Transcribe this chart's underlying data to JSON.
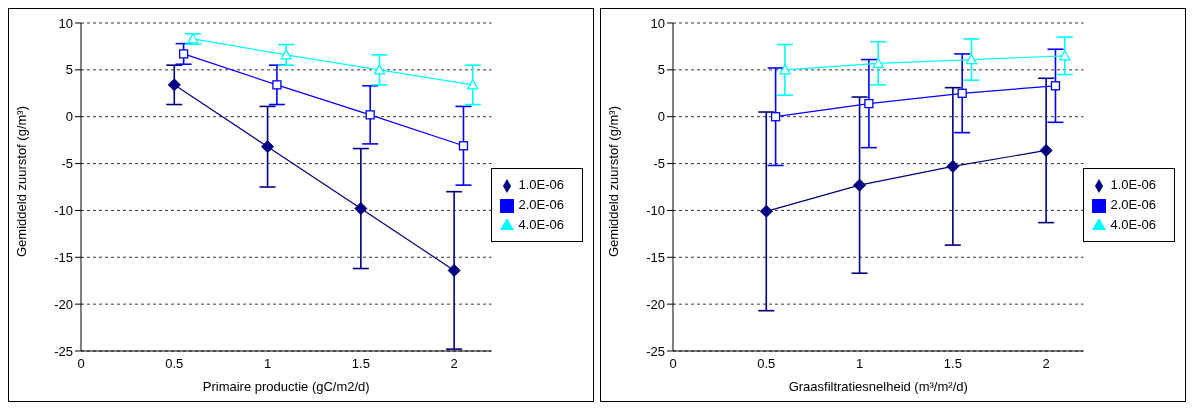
{
  "chart_data": [
    {
      "type": "line",
      "xlabel": "Primaire productie (gC/m2/d)",
      "ylabel": "Gemiddeld zuurstof (g/m³)",
      "xlim": [
        0,
        2.2
      ],
      "xticks": [
        0,
        0.5,
        1,
        1.5,
        2
      ],
      "ylim": [
        -25,
        10
      ],
      "yticks": [
        -25,
        -20,
        -15,
        -10,
        -5,
        0,
        5,
        10
      ],
      "grid": "y",
      "legend": "right",
      "series": [
        {
          "name": "1.0E-06",
          "color": "#000080",
          "marker": "diamond",
          "x": [
            0.5,
            1,
            1.5,
            2
          ],
          "values": [
            3.4,
            -3.2,
            -9.8,
            -16.4
          ],
          "errors": [
            2.1,
            4.3,
            6.4,
            8.4
          ]
        },
        {
          "name": "2.0E-06",
          "color": "#0000ff",
          "marker": "square",
          "x": [
            0.55,
            1.05,
            1.55,
            2.05
          ],
          "values": [
            6.7,
            3.4,
            0.2,
            -3.1
          ],
          "errors": [
            1.1,
            2.1,
            3.1,
            4.2
          ]
        },
        {
          "name": "4.0E-06",
          "color": "#00ffff",
          "marker": "triangle",
          "x": [
            0.6,
            1.1,
            1.6,
            2.1
          ],
          "values": [
            8.3,
            6.6,
            5.0,
            3.4
          ],
          "errors": [
            0.55,
            1.1,
            1.6,
            2.1
          ]
        }
      ]
    },
    {
      "type": "line",
      "xlabel": "Graasfiltratiesnelheid (m³/m²/d)",
      "ylabel": "Gemiddeld zuurstof (g/m³)",
      "xlim": [
        0,
        2.2
      ],
      "xticks": [
        0,
        0.5,
        1,
        1.5,
        2
      ],
      "ylim": [
        -25,
        10
      ],
      "yticks": [
        -25,
        -20,
        -15,
        -10,
        -5,
        0,
        5,
        10
      ],
      "grid": "y",
      "legend": "right",
      "series": [
        {
          "name": "1.0E-06",
          "color": "#000080",
          "marker": "diamond",
          "x": [
            0.5,
            1,
            1.5,
            2
          ],
          "values": [
            -10.1,
            -7.3,
            -5.3,
            -3.6
          ],
          "errors": [
            10.6,
            9.4,
            8.4,
            7.7
          ]
        },
        {
          "name": "2.0E-06",
          "color": "#0000ff",
          "marker": "square",
          "x": [
            0.55,
            1.05,
            1.55,
            2.05
          ],
          "values": [
            0,
            1.4,
            2.5,
            3.3
          ],
          "errors": [
            5.2,
            4.7,
            4.2,
            3.9
          ]
        },
        {
          "name": "4.0E-06",
          "color": "#00ffff",
          "marker": "triangle",
          "x": [
            0.6,
            1.1,
            1.6,
            2.1
          ],
          "values": [
            5.0,
            5.7,
            6.1,
            6.5
          ],
          "errors": [
            2.7,
            2.3,
            2.2,
            2.0
          ]
        }
      ]
    }
  ]
}
